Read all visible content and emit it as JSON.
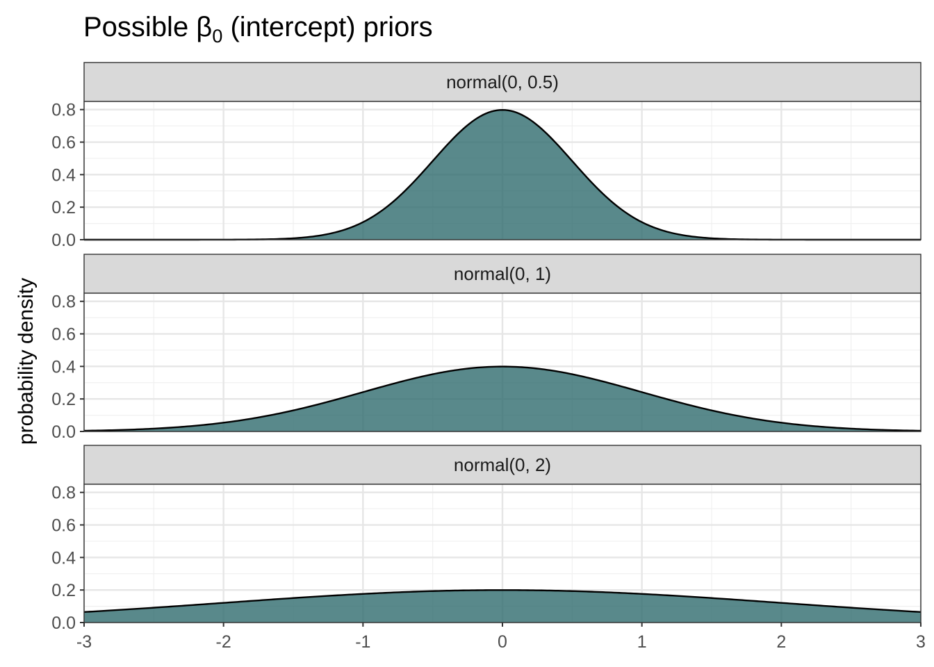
{
  "chart_data": {
    "type": "area",
    "title": "Possible β0 (intercept) priors",
    "title_prefix": "Possible β",
    "title_subscript": "0",
    "title_suffix": " (intercept) priors",
    "xlabel": "",
    "ylabel": "probability density",
    "xlim": [
      -3,
      3
    ],
    "ylim": [
      0,
      0.85
    ],
    "x_ticks": [
      "-3",
      "-2",
      "-1",
      "0",
      "1",
      "2",
      "3"
    ],
    "y_ticks": [
      "0.0",
      "0.2",
      "0.4",
      "0.6",
      "0.8"
    ],
    "grid": true,
    "fill_color": "#2f6b6e",
    "line_color": "#000000",
    "panels": [
      {
        "label": "normal(0, 0.5)",
        "distribution": "normal",
        "mean": 0,
        "sd": 0.5,
        "peak": 0.8
      },
      {
        "label": "normal(0, 1)",
        "distribution": "normal",
        "mean": 0,
        "sd": 1,
        "peak": 0.4
      },
      {
        "label": "normal(0, 2)",
        "distribution": "normal",
        "mean": 0,
        "sd": 2,
        "peak": 0.2
      }
    ]
  }
}
